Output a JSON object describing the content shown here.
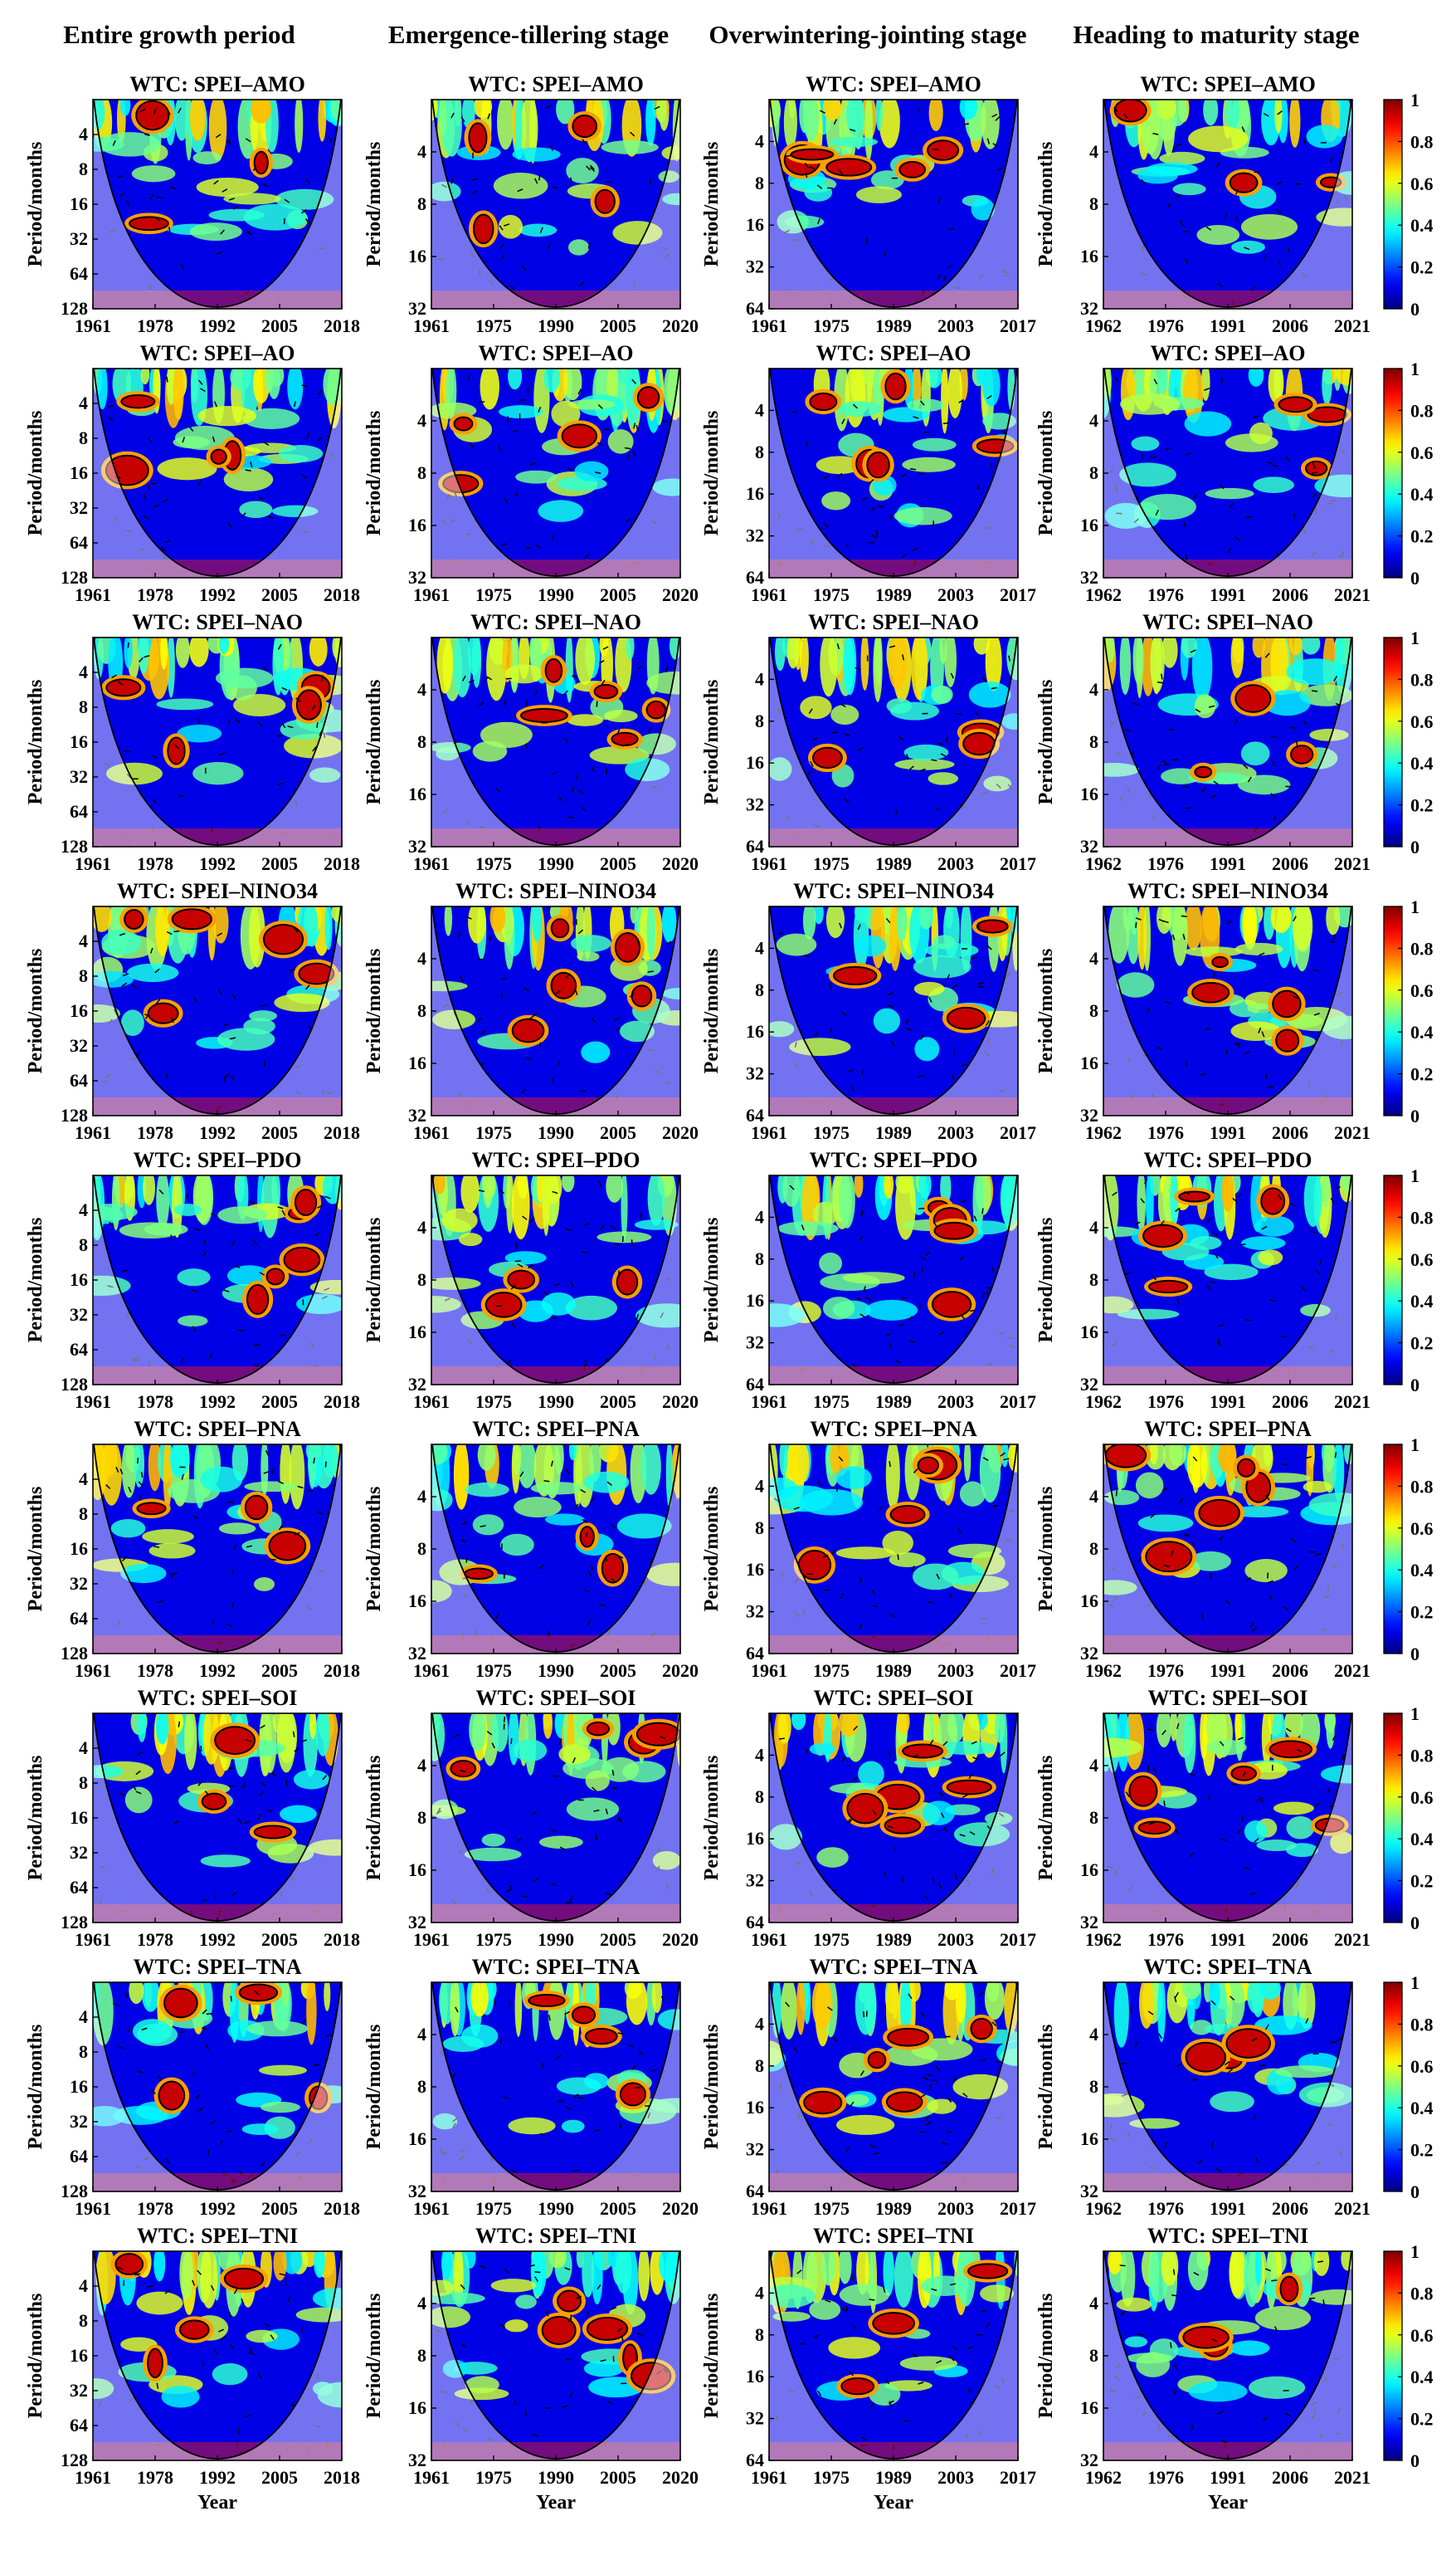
{
  "columns": [
    {
      "title": "Entire growth period"
    },
    {
      "title": "Emergence-tillering stage"
    },
    {
      "title": "Overwintering-jointing stage"
    },
    {
      "title": "Heading to maturity stage"
    }
  ],
  "chart_data": {
    "type": "heatmap",
    "subtype": "wavelet coherence (WTC) grid",
    "xlabel": "Year",
    "ylabel": "Period/months",
    "colorbar": {
      "min": 0,
      "max": 1,
      "ticks": [
        "0",
        "0.2",
        "0.4",
        "0.6",
        "0.8",
        "1"
      ]
    },
    "rows": [
      {
        "title": "WTC: SPEI–AMO"
      },
      {
        "title": "WTC: SPEI–AO"
      },
      {
        "title": "WTC: SPEI–NAO"
      },
      {
        "title": "WTC: SPEI–NINO34"
      },
      {
        "title": "WTC: SPEI–PDO"
      },
      {
        "title": "WTC: SPEI–PNA"
      },
      {
        "title": "WTC: SPEI–SOI"
      },
      {
        "title": "WTC: SPEI–TNA"
      },
      {
        "title": "WTC: SPEI–TNI"
      }
    ],
    "column_axes": [
      {
        "x_ticks": [
          "1961",
          "1978",
          "1992",
          "2005",
          "2018"
        ],
        "y_ticks": [
          "4",
          "8",
          "16",
          "32",
          "64",
          "128"
        ],
        "y_max": 128
      },
      {
        "x_ticks": [
          "1961",
          "1975",
          "1990",
          "2005",
          "2020"
        ],
        "y_ticks": [
          "4",
          "8",
          "16",
          "32"
        ],
        "y_max": 32
      },
      {
        "x_ticks": [
          "1961",
          "1975",
          "1989",
          "2003",
          "2017"
        ],
        "y_ticks": [
          "4",
          "8",
          "16",
          "32",
          "64"
        ],
        "y_max": 64
      },
      {
        "x_ticks": [
          "1962",
          "1976",
          "1991",
          "2006",
          "2021"
        ],
        "y_ticks": [
          "4",
          "8",
          "16",
          "32"
        ],
        "y_max": 32
      }
    ],
    "panel_overrides": [
      {
        "row": 0,
        "col": 1,
        "x_ticks": [
          "1961",
          "1975",
          "1990",
          "2005",
          "2020"
        ]
      },
      {
        "row": 0,
        "col": 2,
        "x_ticks": [
          "1961",
          "1975",
          "1989",
          "2003",
          "2017"
        ]
      }
    ]
  }
}
